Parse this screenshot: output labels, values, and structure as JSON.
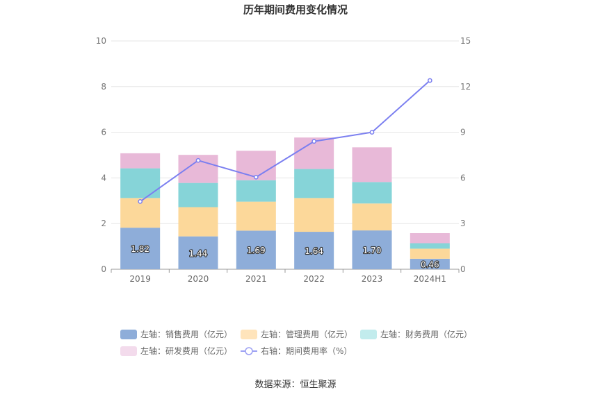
{
  "chart_data": {
    "type": "bar",
    "title": "历年期间费用变化情况",
    "categories": [
      "2019",
      "2020",
      "2021",
      "2022",
      "2023",
      "2024H1"
    ],
    "y_left": {
      "min": 0,
      "max": 10,
      "ticks": [
        0,
        2,
        4,
        6,
        8,
        10
      ]
    },
    "y_right": {
      "min": 0,
      "max": 15,
      "ticks": [
        0,
        3,
        6,
        9,
        12,
        15
      ]
    },
    "stacked": true,
    "series": [
      {
        "name": "左轴：销售费用（亿元）",
        "axis": "left",
        "kind": "bar",
        "color": "#8eadd9",
        "values": [
          1.82,
          1.44,
          1.69,
          1.64,
          1.7,
          0.46
        ],
        "labels": [
          "1.82",
          "1.44",
          "1.69",
          "1.64",
          "1.70",
          "0.46"
        ]
      },
      {
        "name": "左轴：管理费用（亿元）",
        "axis": "left",
        "kind": "bar",
        "color": "#fcd89a",
        "values": [
          1.3,
          1.28,
          1.27,
          1.48,
          1.18,
          0.44
        ]
      },
      {
        "name": "左轴：财务费用（亿元）",
        "axis": "left",
        "kind": "bar",
        "color": "#86d4d8",
        "values": [
          1.3,
          1.06,
          0.94,
          1.27,
          0.94,
          0.24
        ]
      },
      {
        "name": "左轴：研发费用（亿元）",
        "axis": "left",
        "kind": "bar",
        "color": "#e8b9d8",
        "values": [
          0.66,
          1.23,
          1.29,
          1.38,
          1.52,
          0.44
        ]
      },
      {
        "name": "右轴：期间费用率（%）",
        "axis": "right",
        "kind": "line",
        "color": "#7b7ff0",
        "values": [
          4.45,
          7.15,
          6.05,
          8.4,
          9.0,
          12.4
        ]
      }
    ],
    "legend_position": "bottom",
    "grid": true
  },
  "legend_colors": [
    "#8eadd9",
    "#ffe4bb",
    "#c2eced",
    "#f3dbec",
    "#9b9ff3"
  ],
  "source": "数据来源：恒生聚源"
}
